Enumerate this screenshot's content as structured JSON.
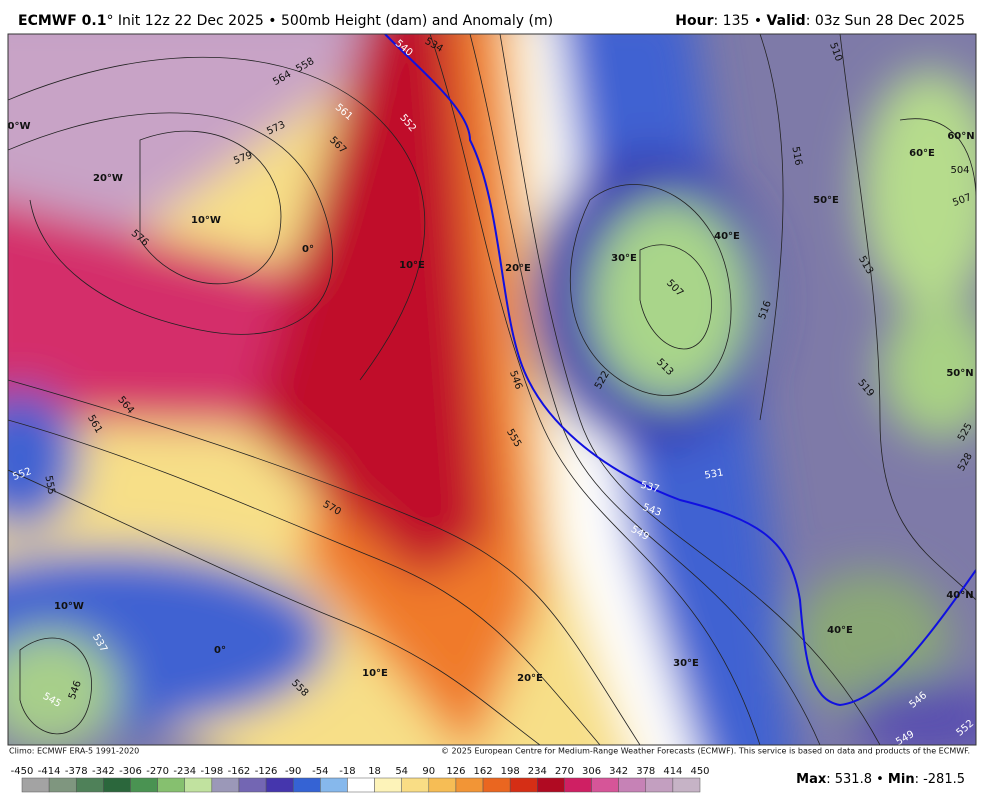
{
  "header": {
    "model": "ECMWF 0.1",
    "title_rest": "° Init 12z 22 Dec 2025 • 500mb Height (dam) and Anomaly (m)",
    "hour_label": "Hour",
    "hour_value": ": 135 • ",
    "valid_label": "Valid",
    "valid_value": ": 03z Sun 28 Dec 2025"
  },
  "map_labels": {
    "graticule": [
      "0°W",
      "20°W",
      "10°W",
      "0°",
      "10°E",
      "20°E",
      "30°E",
      "40°E",
      "50°E",
      "60°E",
      "60°N",
      "50°N",
      "40°N",
      "10°W",
      "0°",
      "10°E",
      "20°E",
      "30°E",
      "40°E"
    ],
    "contours": [
      "558",
      "564",
      "573",
      "579",
      "576",
      "561",
      "567",
      "552",
      "540",
      "534",
      "564",
      "561",
      "552",
      "555",
      "570",
      "555",
      "546",
      "537",
      "531",
      "543",
      "549",
      "522",
      "513",
      "507",
      "516",
      "519",
      "513",
      "516",
      "510",
      "504",
      "507",
      "525",
      "528",
      "546",
      "549",
      "552",
      "558",
      "546",
      "545",
      "537"
    ]
  },
  "footer": {
    "climo": "Climo: ECMWF ERA-5 1991-2020",
    "copyright": "© 2025 European Centre for Medium-Range Weather Forecasts (ECMWF). This service is based on data and products of the ECMWF.",
    "max_label": "Max",
    "max_value": ": 531.8 • ",
    "min_label": "Min",
    "min_value": ": -281.5"
  },
  "colorbar": {
    "ticks": [
      -450,
      -414,
      -378,
      -342,
      -306,
      -270,
      -234,
      -198,
      -162,
      -126,
      -90,
      -54,
      -18,
      18,
      54,
      90,
      126,
      162,
      198,
      234,
      270,
      306,
      342,
      378,
      414,
      450
    ],
    "colors": [
      "#a3a3a3",
      "#7f967f",
      "#4f8159",
      "#2b673c",
      "#4a9352",
      "#86c06f",
      "#c1e29f",
      "#9b98b8",
      "#7366b3",
      "#4536ad",
      "#3563d4",
      "#86b8ec",
      "#ffffff",
      "#fdf3b9",
      "#f9dd85",
      "#f6bd55",
      "#f29536",
      "#ea6620",
      "#d52e15",
      "#b00a22",
      "#cf1f63",
      "#d65598",
      "#c682b6",
      "#c39fc0",
      "#c6b3c6"
    ]
  }
}
